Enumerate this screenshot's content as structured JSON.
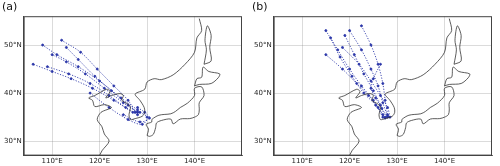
{
  "chart_data": [
    {
      "type": "scatter",
      "title": "(a)",
      "grid": true,
      "xlim": [
        104,
        150
      ],
      "ylim": [
        27,
        56
      ],
      "xticks": [
        {
          "value": 110,
          "label": "110°E"
        },
        {
          "value": 120,
          "label": "120°E"
        },
        {
          "value": 130,
          "label": "130°E"
        },
        {
          "value": 140,
          "label": "140°E"
        }
      ],
      "yticks": [
        {
          "value": 30,
          "label": "30°N"
        },
        {
          "value": 40,
          "label": "40°N"
        },
        {
          "value": 50,
          "label": "50°N"
        }
      ],
      "series": [
        {
          "color": "#2a36a8",
          "marker": "circle",
          "line_style": "dotted",
          "x": [
            128,
            125,
            121,
            117,
            113,
            110
          ],
          "values": [
            36,
            38,
            41,
            44,
            46.5,
            48
          ]
        },
        {
          "color": "#2a36a8",
          "marker": "circle",
          "line_style": "dotted",
          "x": [
            128,
            124.5,
            120,
            115.5,
            111,
            108
          ],
          "values": [
            36.5,
            39,
            42.5,
            45.5,
            48,
            50
          ]
        },
        {
          "color": "#2a36a8",
          "marker": "circle",
          "line_style": "dotted",
          "x": [
            128,
            125.5,
            122,
            118,
            113.5,
            109
          ],
          "values": [
            35.5,
            37,
            39.5,
            42,
            44,
            45.5
          ]
        },
        {
          "color": "#2a36a8",
          "marker": "circle",
          "line_style": "dotted",
          "x": [
            127.5,
            126,
            123,
            119.5,
            116,
            112
          ],
          "values": [
            36,
            38.5,
            41.5,
            45,
            48.5,
            51
          ]
        },
        {
          "color": "#2a36a8",
          "marker": "circle",
          "line_style": "dotted",
          "x": [
            128.5,
            130,
            129,
            126,
            122,
            118
          ],
          "values": [
            36,
            35,
            33.5,
            34.5,
            37,
            40
          ]
        },
        {
          "color": "#2a36a8",
          "marker": "circle",
          "line_style": "dotted",
          "x": [
            128,
            129.5,
            130.5,
            128.5,
            125
          ],
          "values": [
            37,
            36,
            34.8,
            34,
            35.5
          ]
        },
        {
          "color": "#2a36a8",
          "marker": "circle",
          "line_style": "dotted",
          "x": [
            127,
            123,
            118.5,
            114,
            110,
            106
          ],
          "values": [
            36,
            38.5,
            41,
            43,
            44.5,
            46
          ]
        },
        {
          "color": "#2a36a8",
          "marker": "circle",
          "line_style": "dotted",
          "x": [
            128,
            126,
            122.5,
            119,
            115.5,
            113
          ],
          "values": [
            36,
            37.5,
            40.5,
            43.5,
            47,
            49.5
          ]
        }
      ]
    },
    {
      "type": "scatter",
      "title": "(b)",
      "grid": true,
      "xlim": [
        104,
        150
      ],
      "ylim": [
        27,
        56
      ],
      "xticks": [
        {
          "value": 110,
          "label": "110°E"
        },
        {
          "value": 120,
          "label": "120°E"
        },
        {
          "value": 130,
          "label": "130°E"
        },
        {
          "value": 140,
          "label": "140°E"
        }
      ],
      "yticks": [
        {
          "value": 30,
          "label": "30°N"
        },
        {
          "value": 40,
          "label": "40°N"
        },
        {
          "value": 50,
          "label": "50°N"
        }
      ],
      "series": [
        {
          "color": "#2a36a8",
          "marker": "circle",
          "line_style": "dotted",
          "x": [
            127.5,
            126.5,
            125,
            123,
            121,
            119
          ],
          "values": [
            35,
            37.5,
            40.5,
            44,
            48,
            52
          ]
        },
        {
          "color": "#2a36a8",
          "marker": "circle",
          "line_style": "dotted",
          "x": [
            128,
            127,
            126,
            124.5,
            122.5,
            120
          ],
          "values": [
            35.2,
            38,
            41.5,
            45,
            49,
            53
          ]
        },
        {
          "color": "#2a36a8",
          "marker": "circle",
          "line_style": "dotted",
          "x": [
            127,
            125.5,
            123,
            120.5,
            118,
            116
          ],
          "values": [
            35,
            37.5,
            40,
            43.5,
            47.5,
            51.5
          ]
        },
        {
          "color": "#2a36a8",
          "marker": "circle",
          "line_style": "dotted",
          "x": [
            128,
            127.5,
            127,
            126,
            124.5,
            122.5
          ],
          "values": [
            35.5,
            38.5,
            42,
            46,
            50,
            54
          ]
        },
        {
          "color": "#2a36a8",
          "marker": "circle",
          "line_style": "dotted",
          "x": [
            127.5,
            126,
            124,
            121.5,
            118.5,
            115
          ],
          "values": [
            34.8,
            37,
            39.5,
            42,
            45,
            48
          ]
        },
        {
          "color": "#2a36a8",
          "marker": "circle",
          "line_style": "dotted",
          "x": [
            128.5,
            128,
            126.5,
            124.5,
            122,
            118.5
          ],
          "values": [
            35,
            37,
            39.5,
            42.5,
            46,
            49.5
          ]
        },
        {
          "color": "#2a36a8",
          "marker": "circle",
          "line_style": "dotted",
          "x": [
            127,
            125,
            122.5,
            120,
            117.5,
            115
          ],
          "values": [
            35.5,
            38.5,
            41.5,
            45,
            49,
            53
          ]
        },
        {
          "color": "#2a36a8",
          "marker": "circle",
          "line_style": "dotted",
          "x": [
            128,
            126.8,
            125.5,
            124.5,
            125,
            126.5
          ],
          "values": [
            35,
            36.8,
            39,
            41,
            43,
            46
          ]
        }
      ]
    }
  ],
  "coastlines": {
    "color": "#333333",
    "line_style": "solid",
    "marker": "none",
    "lines": [
      [
        [
          119.5,
          26
        ],
        [
          120.5,
          28
        ],
        [
          122,
          30
        ],
        [
          121,
          31.5
        ],
        [
          120.5,
          33
        ],
        [
          119.5,
          34.5
        ],
        [
          120.3,
          36
        ],
        [
          122.5,
          37
        ],
        [
          121,
          37.6
        ],
        [
          119,
          37.2
        ],
        [
          118.5,
          38.5
        ],
        [
          117.7,
          39
        ],
        [
          119,
          39.5
        ],
        [
          121.5,
          40.8
        ],
        [
          122.2,
          40.3
        ],
        [
          121.3,
          39
        ],
        [
          122.5,
          39.5
        ],
        [
          124.3,
          39.9
        ],
        [
          125,
          39.5
        ],
        [
          124.7,
          38.5
        ],
        [
          126,
          37.7
        ],
        [
          126.5,
          37
        ],
        [
          126.2,
          35.5
        ],
        [
          126.5,
          34.5
        ],
        [
          127.5,
          34.7
        ],
        [
          129,
          35.2
        ],
        [
          129.5,
          36
        ],
        [
          129.4,
          37
        ],
        [
          128.5,
          38.5
        ],
        [
          127.5,
          39.8
        ],
        [
          129.5,
          40.8
        ],
        [
          130,
          42.3
        ],
        [
          131.5,
          43
        ],
        [
          133,
          42.8
        ],
        [
          135.5,
          43.8
        ],
        [
          138,
          46
        ],
        [
          140,
          48.5
        ],
        [
          140.5,
          51.5
        ],
        [
          141.5,
          53
        ],
        [
          141,
          55.5
        ]
      ],
      [
        [
          130,
          31.2
        ],
        [
          130.3,
          32.5
        ],
        [
          129.8,
          33.5
        ],
        [
          131,
          34
        ],
        [
          131,
          34.5
        ],
        [
          132.5,
          35.4
        ],
        [
          135,
          35.7
        ],
        [
          136,
          36.2
        ],
        [
          137,
          37
        ],
        [
          138.5,
          37.9
        ],
        [
          140,
          39.5
        ],
        [
          140,
          41
        ],
        [
          141.5,
          41.3
        ],
        [
          142,
          39.5
        ],
        [
          141,
          38
        ],
        [
          141,
          36.5
        ],
        [
          140.8,
          35.5
        ],
        [
          140,
          35
        ],
        [
          139,
          34.7
        ],
        [
          137,
          34.6
        ],
        [
          135.5,
          33.6
        ],
        [
          135,
          34.6
        ],
        [
          133,
          34.3
        ],
        [
          132,
          33.8
        ],
        [
          131.8,
          32.8
        ],
        [
          131.3,
          31.4
        ],
        [
          130.5,
          31
        ],
        [
          130,
          31.2
        ]
      ],
      [
        [
          140,
          41.5
        ],
        [
          140.5,
          43
        ],
        [
          141.5,
          43.3
        ],
        [
          141.8,
          45.4
        ],
        [
          143,
          44.5
        ],
        [
          145.3,
          44
        ],
        [
          145,
          43.2
        ],
        [
          143.5,
          42
        ],
        [
          141,
          41.8
        ],
        [
          140,
          41.5
        ]
      ],
      [
        [
          142,
          46
        ],
        [
          142.5,
          49
        ],
        [
          142.2,
          51
        ],
        [
          142.7,
          54
        ],
        [
          143.5,
          52
        ],
        [
          143.2,
          49.5
        ],
        [
          143.5,
          46.7
        ],
        [
          142,
          46
        ]
      ]
    ]
  }
}
